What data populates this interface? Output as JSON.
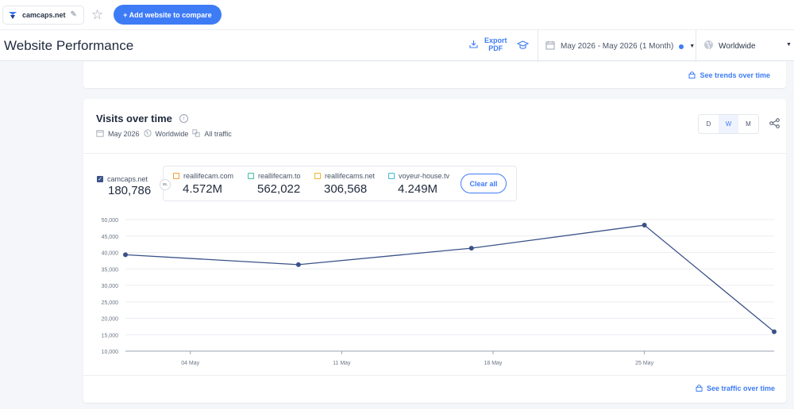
{
  "topbar": {
    "site_name": "camcaps.net",
    "add_button_label": "+ Add website to compare"
  },
  "header": {
    "title": "Website Performance",
    "export_line1": "Export",
    "export_line2": "PDF",
    "date_range": "May 2026 - May 2026 (1 Month)",
    "region": "Worldwide"
  },
  "trends_card": {
    "link_label": "See trends over time"
  },
  "visits_card": {
    "title": "Visits over time",
    "period": "May 2026",
    "region": "Worldwide",
    "traffic_type": "All traffic",
    "granularity": [
      "D",
      "W",
      "M"
    ],
    "granularity_selected": "W",
    "main_site": {
      "name": "camcaps.net",
      "value": "180,786"
    },
    "vs_label": "vs.",
    "competitors": [
      {
        "name": "reallifecam.com",
        "value": "4.572M",
        "color": "#f29d38"
      },
      {
        "name": "reallifecam.to",
        "value": "562,022",
        "color": "#3fbfa0"
      },
      {
        "name": "reallifecams.net",
        "value": "306,568",
        "color": "#f0b429"
      },
      {
        "name": "voyeur-house.tv",
        "value": "4.249M",
        "color": "#3cb8d6"
      }
    ],
    "clear_label": "Clear all",
    "footer_link": "See traffic over time"
  },
  "chart_data": {
    "type": "line",
    "series": [
      {
        "name": "camcaps.net",
        "color": "#3a5288",
        "points": [
          {
            "x": "2026-05-01",
            "y": 39300
          },
          {
            "x": "2026-05-09",
            "y": 36300
          },
          {
            "x": "2026-05-17",
            "y": 41300
          },
          {
            "x": "2026-05-25",
            "y": 48300
          },
          {
            "x": "2026-05-31",
            "y": 15900
          }
        ]
      }
    ],
    "x_ticks": [
      "04 May",
      "11 May",
      "18 May",
      "25 May"
    ],
    "x_tick_dates": [
      "2026-05-04",
      "2026-05-11",
      "2026-05-18",
      "2026-05-25"
    ],
    "x_range": [
      "2026-05-01",
      "2026-05-31"
    ],
    "y_ticks": [
      "10,000",
      "15,000",
      "20,000",
      "25,000",
      "30,000",
      "35,000",
      "40,000",
      "45,000",
      "50,000"
    ],
    "ylim": [
      10000,
      50000
    ],
    "grid": true
  }
}
